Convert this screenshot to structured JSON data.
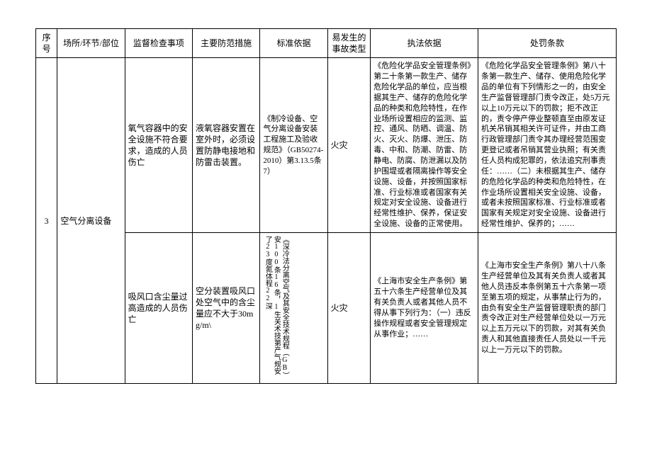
{
  "columns": {
    "seq": "序号",
    "place": "场所/环节/部位",
    "check": "监督检查事项",
    "measure": "主要防范措施",
    "std": "标准依据",
    "acc": "易发生的事故类型",
    "law": "执法依据",
    "pen": "处罚条款"
  },
  "rows": [
    {
      "seq": "3",
      "place": "空气分离设备",
      "check": "氧气容器中的安全设施不符合要求，造成的人员伤亡",
      "measure": "液氧容器安置在室外时，必须设置防静电接地和防雷击装置。",
      "std": "《制冷设备、空气分离设备安装工程施工及验收规范》（GB50274-2010）第3.13.5条7）",
      "acc": "火灾",
      "law": "《危险化学品安全管理条例》第二十条第一款生产、储存危险化学品的单位，应当根据其生产、储存的危险化学品的种类和危险特性，在作业场所设置相应的监测、监控、通风、防晒、调温、防火、灭火、防爆、泄压、防毒、中和、防潮、防雷、防静电、防腐、防泄漏以及防护围堤或者隔离操作等安全设施、设备，并按照国家标准、行业标准或者国家有关规定对安全设施、设备进行经常性维护、保养，保证安全设施、设备的正常使用。",
      "pen": "《危险化学品安全管理条例》第八十条第一款生产、储存、使用危险化学品的单位有下列情形之一的，由安全生产监督管理部门责令改正，处5万元以上10万元以下的罚款；拒不改正的，责令停产停业整顿直至由原发证机关吊销其相关许可证件，并由工商行政管理部门责令其办理经营范围变更登记或者吊销其营业执照；有关责任人员构成犯罪的，依法追究刑事责任：……（二）未根据其生产、储存的危险化学品的种类和危险特性，在作业场所设置相关安全设施、设备，或者未按照国家标准、行业标准或者国家有关规定对安全设施、设备进行经常性维护、保养的；……"
    },
    {
      "check": "吸风口含尘量过高造成的人员伤亡",
      "measure": "空分装置吸风口处空气中的含尘量应不大于30mg/m\\",
      "std": "《深冷法分离空气及其安全技术规程（GB）安100条16条，1生关术技第产气规安了23度氮体程22深",
      "acc": "火灾",
      "law": "《上海市安全生产条例》第五十六条生产经营单位及其有关负责人或者其他人员不得从事下列行为：（一）违反操作规程或者安全管理规定从事作业；……",
      "pen": "《上海市安全生产条例》第八十八条生产经营单位及其有关负责人或者其他人员违反本条例第五十六条第一项至第五项的规定，从事禁止行为的，由负有安全生产监督管理职责的部门责令改正对生产经营单位处以一万元以上五万元以下的罚款，对其有关负责人和其他直接责任人员处以一千元以上一万元以下的罚款。"
    }
  ]
}
